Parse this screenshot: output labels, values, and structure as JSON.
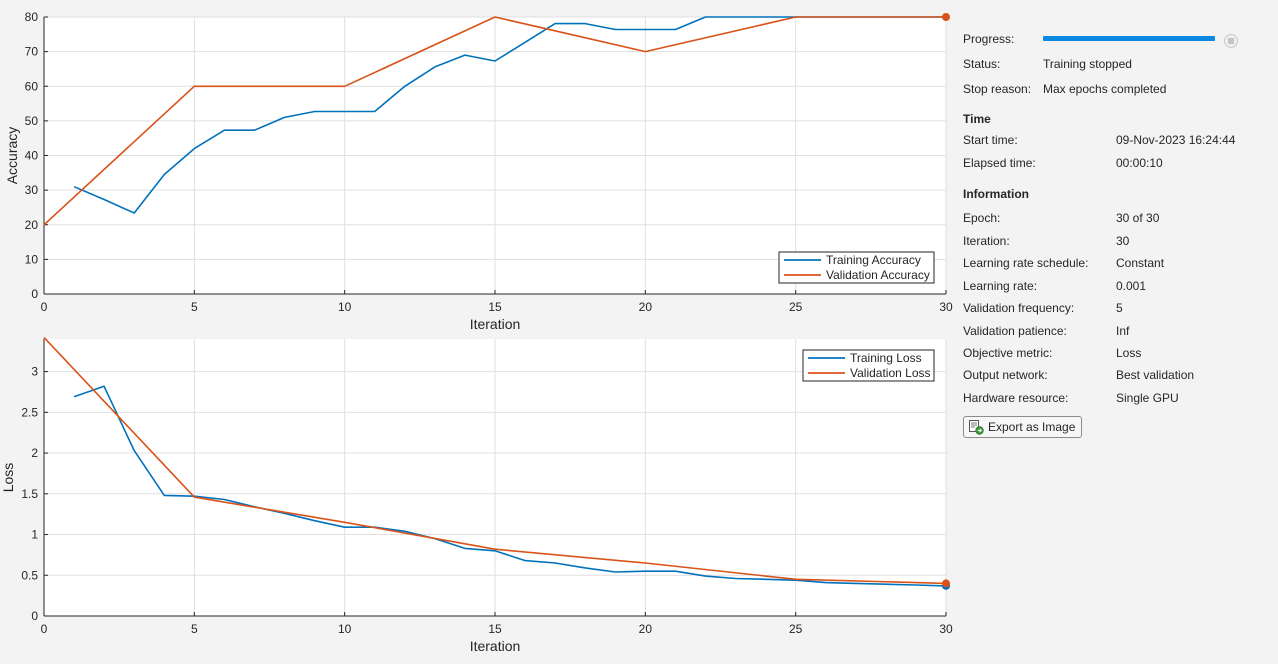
{
  "icons": {
    "stop": "stop-icon",
    "export": "export-image-icon"
  },
  "colors": {
    "training": "#0072bd",
    "validation": "#d95319",
    "progress": "#0c88e0"
  },
  "info": {
    "progress_label": "Progress:",
    "progress_value": 1.0,
    "status_label": "Status:",
    "status_value": "Training stopped",
    "stop_reason_label": "Stop reason:",
    "stop_reason_value": "Max epochs completed",
    "time_header": "Time",
    "start_time_label": "Start time:",
    "start_time_value": "09-Nov-2023 16:24:44",
    "elapsed_time_label": "Elapsed time:",
    "elapsed_time_value": "00:00:10",
    "information_header": "Information",
    "epoch_label": "Epoch:",
    "epoch_value": "30 of 30",
    "iteration_label": "Iteration:",
    "iteration_value": "30",
    "lr_schedule_label": "Learning rate schedule:",
    "lr_schedule_value": "Constant",
    "lr_label": "Learning rate:",
    "lr_value": "0.001",
    "val_freq_label": "Validation frequency:",
    "val_freq_value": "5",
    "val_patience_label": "Validation patience:",
    "val_patience_value": "Inf",
    "objective_label": "Objective metric:",
    "objective_value": "Loss",
    "output_network_label": "Output network:",
    "output_network_value": "Best validation",
    "hardware_label": "Hardware resource:",
    "hardware_value": "Single GPU",
    "export_button": "Export as Image"
  },
  "chart_data": [
    {
      "type": "line",
      "xlabel": "Iteration",
      "ylabel": "Accuracy",
      "xlim": [
        0,
        30
      ],
      "ylim": [
        0,
        80
      ],
      "xticks": [
        "0",
        "5",
        "10",
        "15",
        "20",
        "25",
        "30"
      ],
      "yticks": [
        "0",
        "10",
        "20",
        "30",
        "40",
        "50",
        "60",
        "70",
        "80"
      ],
      "grid": true,
      "legend_position": "bottom-right",
      "series": [
        {
          "name": "Training Accuracy",
          "x": [
            1,
            2,
            3,
            4,
            5,
            6,
            7,
            8,
            9,
            10,
            11,
            12,
            13,
            14,
            15,
            16,
            17,
            18,
            19,
            20,
            21,
            22,
            23,
            24,
            25,
            26,
            27,
            28,
            29,
            30
          ],
          "y": [
            31,
            27.3,
            23.4,
            34.5,
            42,
            47.3,
            47.3,
            51,
            52.7,
            52.7,
            52.7,
            60,
            65.6,
            69,
            67.3,
            72.7,
            78.1,
            78.1,
            76.4,
            76.4,
            76.4,
            80,
            80,
            80,
            80,
            80,
            80,
            80,
            80,
            80
          ]
        },
        {
          "name": "Validation Accuracy",
          "x": [
            0,
            5,
            10,
            15,
            20,
            25,
            30
          ],
          "y": [
            20,
            60,
            60,
            80,
            70,
            80,
            80
          ],
          "final_marker": true
        }
      ]
    },
    {
      "type": "line",
      "xlabel": "Iteration",
      "ylabel": "Loss",
      "xlim": [
        0,
        30
      ],
      "ylim": [
        0,
        3.4
      ],
      "xticks": [
        "0",
        "5",
        "10",
        "15",
        "20",
        "25",
        "30"
      ],
      "yticks": [
        "0",
        "0.5",
        "1",
        "1.5",
        "2",
        "2.5",
        "3"
      ],
      "ytick_values": [
        0,
        0.5,
        1,
        1.5,
        2,
        2.5,
        3
      ],
      "grid": true,
      "legend_position": "top-right",
      "series": [
        {
          "name": "Training Loss",
          "x": [
            1,
            2,
            3,
            4,
            5,
            6,
            7,
            8,
            9,
            10,
            11,
            12,
            13,
            14,
            15,
            16,
            17,
            18,
            19,
            20,
            21,
            22,
            23,
            24,
            25,
            26,
            27,
            28,
            29,
            30
          ],
          "y": [
            2.69,
            2.82,
            2.03,
            1.48,
            1.47,
            1.43,
            1.34,
            1.26,
            1.17,
            1.09,
            1.09,
            1.04,
            0.95,
            0.83,
            0.8,
            0.68,
            0.65,
            0.59,
            0.54,
            0.55,
            0.55,
            0.49,
            0.46,
            0.45,
            0.44,
            0.41,
            0.4,
            0.39,
            0.38,
            0.37
          ],
          "final_marker": true
        },
        {
          "name": "Validation Loss",
          "x": [
            0,
            5,
            10,
            15,
            20,
            25,
            30
          ],
          "y": [
            3.42,
            1.46,
            1.15,
            0.82,
            0.65,
            0.45,
            0.4
          ],
          "final_marker": true
        }
      ]
    }
  ]
}
